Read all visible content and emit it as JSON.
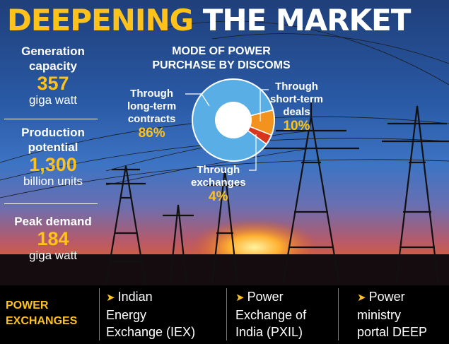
{
  "title": {
    "part1": "DEEPENING",
    "part2": "THE MARKET"
  },
  "stats": [
    {
      "label_line1": "Generation",
      "label_line2": "capacity",
      "value": "357",
      "unit": "giga watt"
    },
    {
      "label_line1": "Production",
      "label_line2": "potential",
      "value": "1,300",
      "unit": "billion units"
    },
    {
      "label_line1": "Peak demand",
      "value": "184",
      "unit": "giga watt"
    }
  ],
  "chart_data": {
    "type": "pie",
    "title_line1": "MODE OF POWER",
    "title_line2": "PURCHASE BY DISCOMS",
    "slices": [
      {
        "label_lines": [
          "Through",
          "long-term",
          "contracts"
        ],
        "value": 86,
        "value_label": "86%",
        "color": "#5aaee6"
      },
      {
        "label_lines": [
          "Through",
          "short-term",
          "deals"
        ],
        "value": 10,
        "value_label": "10%",
        "color": "#f3921c"
      },
      {
        "label_lines": [
          "Through",
          "exchanges"
        ],
        "value": 4,
        "value_label": "4%",
        "color": "#d8351f"
      }
    ]
  },
  "exchanges": {
    "label_line1": "POWER",
    "label_line2": "EXCHANGES",
    "arrow": "➤",
    "items": [
      {
        "line1": "Indian",
        "line2": "Energy",
        "line3": "Exchange (IEX)"
      },
      {
        "line1": "Power",
        "line2": "Exchange of",
        "line3": "India (PXIL)"
      },
      {
        "line1": "Power",
        "line2": "ministry",
        "line3": "portal DEEP"
      }
    ]
  },
  "colors": {
    "accent": "#ffc21a",
    "text": "#ffffff",
    "ring_border": "#ffffff"
  }
}
